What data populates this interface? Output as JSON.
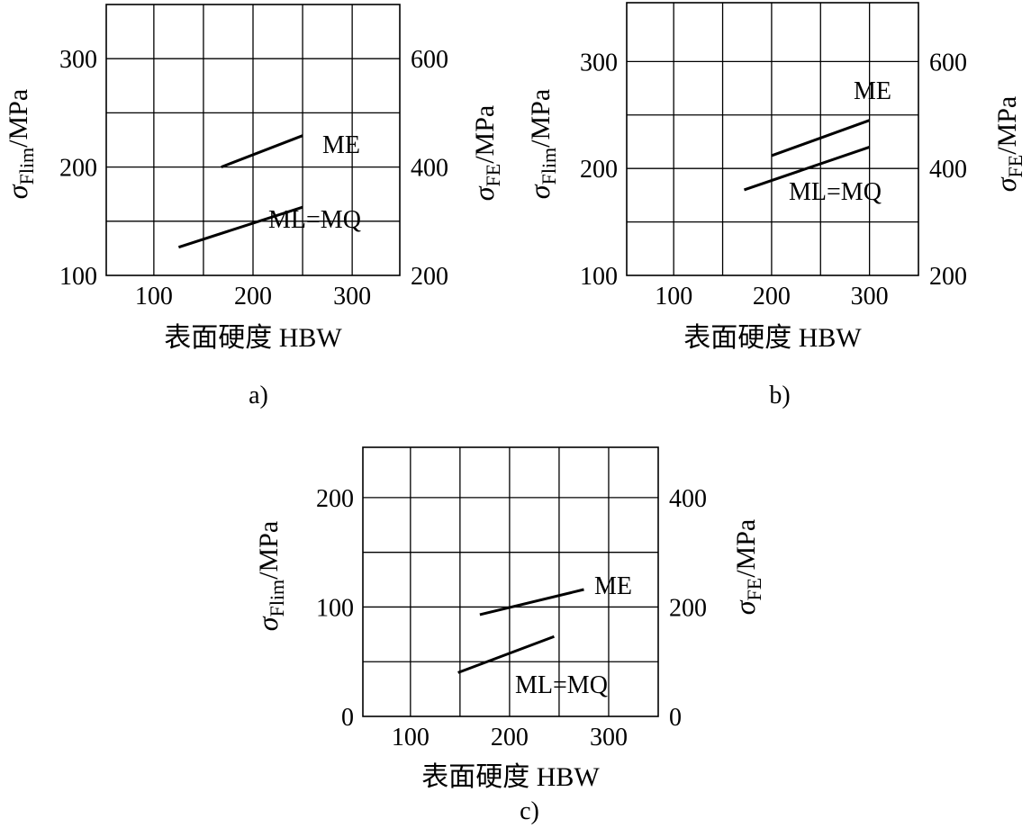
{
  "chart_data": [
    {
      "type": "line",
      "caption": "a)",
      "xlabel": "表面硬度  HBW",
      "ylabel_sym": "σ",
      "ylabel_sub": "Flim",
      "ylabel_unit": "/MPa",
      "y2label_sym": "σ",
      "y2label_sub": "FE",
      "y2label_unit": "/MPa",
      "xlim": [
        52,
        348
      ],
      "ylim": [
        100,
        350
      ],
      "y2lim": [
        200,
        700
      ],
      "x_ticks": [
        100,
        200,
        300
      ],
      "y_ticks": [
        100,
        200,
        300
      ],
      "y2_ticks": [
        200,
        400,
        600
      ],
      "x_grid": [
        100,
        150,
        200,
        250,
        300
      ],
      "y_grid": [
        150,
        200,
        250,
        300
      ],
      "series": [
        {
          "name": "ME",
          "x": [
            168,
            250
          ],
          "y": [
            200,
            229
          ]
        },
        {
          "name": "ML=MQ",
          "x": [
            125,
            250
          ],
          "y": [
            126,
            163
          ]
        }
      ]
    },
    {
      "type": "line",
      "caption": "b)",
      "xlabel": "表面硬度  HBW",
      "ylabel_sym": "σ",
      "ylabel_sub": "Flim",
      "ylabel_unit": "/MPa",
      "y2label_sym": "σ",
      "y2label_sub": "FE",
      "y2label_unit": "/MPa",
      "xlim": [
        52,
        350
      ],
      "ylim": [
        100,
        355
      ],
      "y2lim": [
        200,
        710
      ],
      "x_ticks": [
        100,
        200,
        300
      ],
      "y_ticks": [
        100,
        200,
        300
      ],
      "y2_ticks": [
        200,
        400,
        600
      ],
      "x_grid": [
        100,
        150,
        200,
        250,
        300
      ],
      "y_grid": [
        150,
        200,
        250,
        300
      ],
      "series": [
        {
          "name": "ME",
          "x": [
            200,
            300
          ],
          "y": [
            212,
            245
          ]
        },
        {
          "name": "ML=MQ",
          "x": [
            172,
            300
          ],
          "y": [
            180,
            220
          ]
        }
      ]
    },
    {
      "type": "line",
      "caption": "c)",
      "xlabel": "表面硬度   HBW",
      "ylabel_sym": "σ",
      "ylabel_sub": "Flim",
      "ylabel_unit": "/MPa",
      "y2label_sym": "σ",
      "y2label_sub": "FE",
      "y2label_unit": "/MPa",
      "xlim": [
        52,
        350
      ],
      "ylim": [
        0,
        246
      ],
      "y2lim": [
        0,
        492
      ],
      "x_ticks": [
        100,
        200,
        300
      ],
      "y_ticks": [
        0,
        100,
        200
      ],
      "y2_ticks": [
        0,
        200,
        400
      ],
      "x_grid": [
        100,
        150,
        200,
        250,
        300
      ],
      "y_grid": [
        50,
        100,
        150,
        200
      ],
      "series": [
        {
          "name": "ME",
          "x": [
            170,
            275
          ],
          "y": [
            93,
            116
          ]
        },
        {
          "name": "ML=MQ",
          "x": [
            148,
            245
          ],
          "y": [
            40,
            73
          ]
        }
      ]
    }
  ]
}
